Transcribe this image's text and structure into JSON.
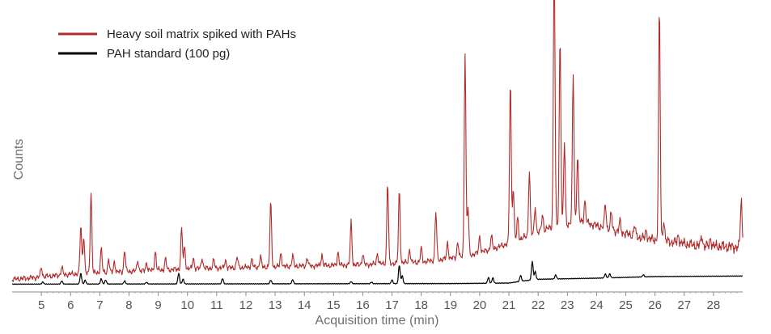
{
  "chart_data": {
    "type": "line",
    "title": "",
    "xlabel": "Acquisition time (min)",
    "ylabel": "Counts",
    "xlim": [
      4.0,
      29.0
    ],
    "ylim": [
      0,
      100
    ],
    "x_ticks": [
      "5",
      "6",
      "7",
      "8",
      "9",
      "10",
      "11",
      "12",
      "13",
      "14",
      "15",
      "16",
      "17",
      "18",
      "19",
      "20",
      "21",
      "22",
      "23",
      "24",
      "25",
      "26",
      "27",
      "28"
    ],
    "grid": false,
    "legend_position": "top-left",
    "series": [
      {
        "name": "Heavy soil matrix spiked with PAHs",
        "color": "#b22a2a",
        "baseline": [
          [
            4.0,
            2.5
          ],
          [
            6.0,
            4.5
          ],
          [
            8.0,
            5.5
          ],
          [
            10.0,
            6.5
          ],
          [
            12.0,
            7.0
          ],
          [
            14.0,
            7.5
          ],
          [
            16.0,
            8.0
          ],
          [
            18.0,
            9.0
          ],
          [
            19.5,
            11.0
          ],
          [
            20.5,
            14.0
          ],
          [
            21.5,
            18.0
          ],
          [
            22.5,
            22.0
          ],
          [
            23.5,
            24.0
          ],
          [
            24.5,
            21.0
          ],
          [
            25.5,
            18.0
          ],
          [
            26.5,
            16.5
          ],
          [
            27.5,
            15.0
          ],
          [
            29.0,
            14.5
          ]
        ],
        "peaks": [
          [
            5.0,
            3.5
          ],
          [
            5.7,
            3.0
          ],
          [
            6.35,
            18
          ],
          [
            6.45,
            14
          ],
          [
            6.7,
            30
          ],
          [
            7.05,
            9
          ],
          [
            7.3,
            5
          ],
          [
            7.5,
            4
          ],
          [
            7.85,
            8
          ],
          [
            8.3,
            4
          ],
          [
            8.6,
            3
          ],
          [
            8.9,
            7
          ],
          [
            9.25,
            4
          ],
          [
            9.8,
            15
          ],
          [
            9.9,
            8
          ],
          [
            10.2,
            4
          ],
          [
            10.5,
            4
          ],
          [
            10.9,
            3
          ],
          [
            11.3,
            3
          ],
          [
            11.7,
            4
          ],
          [
            12.2,
            3
          ],
          [
            12.5,
            4
          ],
          [
            12.85,
            24
          ],
          [
            13.2,
            5
          ],
          [
            13.6,
            4
          ],
          [
            14.1,
            3
          ],
          [
            14.6,
            4
          ],
          [
            15.15,
            5
          ],
          [
            15.6,
            16
          ],
          [
            16.0,
            4
          ],
          [
            16.5,
            4
          ],
          [
            16.85,
            30
          ],
          [
            17.25,
            27
          ],
          [
            17.6,
            5
          ],
          [
            18.0,
            5
          ],
          [
            18.5,
            18
          ],
          [
            18.9,
            6
          ],
          [
            19.25,
            6
          ],
          [
            19.5,
            76
          ],
          [
            19.6,
            18
          ],
          [
            20.0,
            6
          ],
          [
            20.4,
            5
          ],
          [
            21.05,
            60
          ],
          [
            21.15,
            20
          ],
          [
            21.3,
            8
          ],
          [
            21.7,
            24
          ],
          [
            21.9,
            10
          ],
          [
            22.15,
            6
          ],
          [
            22.55,
            100
          ],
          [
            22.75,
            70
          ],
          [
            22.9,
            30
          ],
          [
            23.2,
            55
          ],
          [
            23.35,
            25
          ],
          [
            23.6,
            8
          ],
          [
            24.3,
            9
          ],
          [
            24.5,
            6
          ],
          [
            24.8,
            4
          ],
          [
            25.3,
            4
          ],
          [
            25.7,
            3
          ],
          [
            26.15,
            86
          ],
          [
            26.3,
            8
          ],
          [
            26.8,
            3
          ],
          [
            27.6,
            4
          ],
          [
            27.9,
            3
          ],
          [
            28.95,
            18
          ]
        ]
      },
      {
        "name": "PAH standard (100 pg)",
        "color": "#000000",
        "baseline": [
          [
            4.0,
            0.8
          ],
          [
            19.0,
            1.0
          ],
          [
            21.0,
            1.2
          ],
          [
            21.5,
            2.0
          ],
          [
            22.0,
            2.6
          ],
          [
            24.0,
            3.0
          ],
          [
            26.0,
            3.6
          ],
          [
            29.0,
            3.8
          ]
        ],
        "peaks": [
          [
            5.05,
            0.8
          ],
          [
            5.7,
            1.2
          ],
          [
            6.35,
            4.0
          ],
          [
            6.5,
            1.5
          ],
          [
            7.05,
            2.0
          ],
          [
            7.2,
            1.5
          ],
          [
            7.85,
            1.2
          ],
          [
            8.6,
            0.6
          ],
          [
            9.7,
            4.0
          ],
          [
            9.85,
            1.8
          ],
          [
            11.2,
            2.0
          ],
          [
            12.85,
            1.4
          ],
          [
            13.6,
            1.6
          ],
          [
            15.6,
            0.8
          ],
          [
            16.3,
            0.6
          ],
          [
            17.0,
            1.4
          ],
          [
            17.25,
            7.0
          ],
          [
            17.35,
            3.0
          ],
          [
            20.3,
            2.2
          ],
          [
            20.45,
            2.0
          ],
          [
            21.4,
            2.2
          ],
          [
            21.8,
            7.0
          ],
          [
            21.9,
            3.0
          ],
          [
            22.6,
            1.5
          ],
          [
            24.3,
            1.5
          ],
          [
            24.45,
            1.5
          ],
          [
            25.6,
            0.8
          ]
        ]
      }
    ]
  }
}
